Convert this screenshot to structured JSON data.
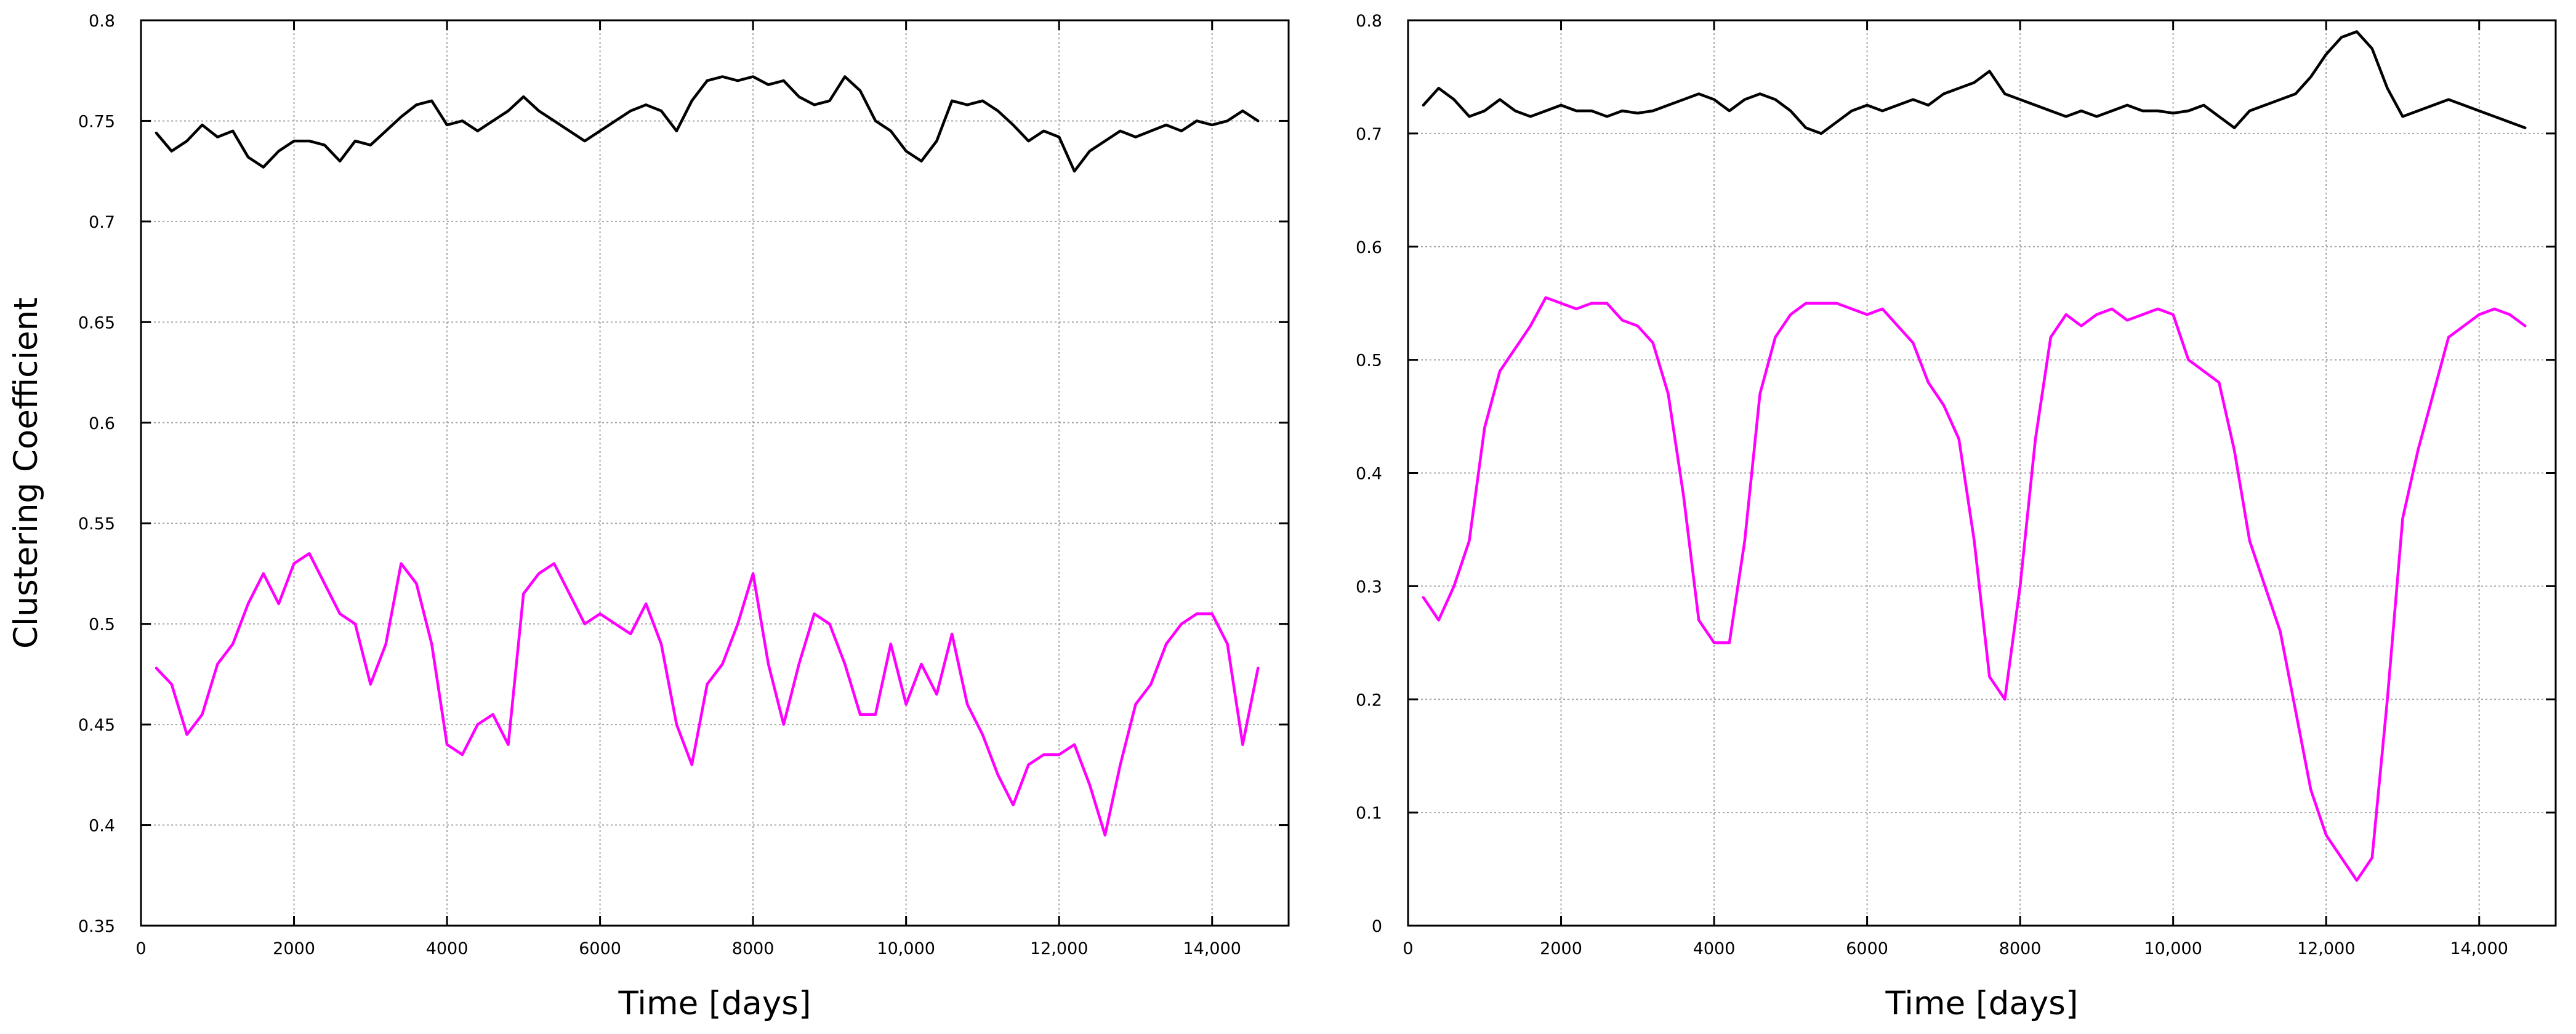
{
  "chart_data": [
    {
      "type": "line",
      "title": "",
      "xlabel": "Time [days]",
      "ylabel": "Clustering Coefficient",
      "xlim": [
        0,
        15000
      ],
      "ylim": [
        0.35,
        0.8
      ],
      "x_ticks": [
        0,
        2000,
        4000,
        6000,
        8000,
        10000,
        12000,
        14000
      ],
      "x_tick_labels": [
        "0",
        "2000",
        "4000",
        "6000",
        "8000",
        "10,000",
        "12,000",
        "14,000"
      ],
      "y_ticks": [
        0.35,
        0.4,
        0.45,
        0.5,
        0.55,
        0.6,
        0.65,
        0.7,
        0.75,
        0.8
      ],
      "y_tick_labels": [
        "0.35",
        "0.4",
        "0.45",
        "0.5",
        "0.55",
        "0.6",
        "0.65",
        "0.7",
        "0.75",
        "0.8"
      ],
      "grid": true,
      "legend": "none",
      "x": [
        200,
        400,
        600,
        800,
        1000,
        1200,
        1400,
        1600,
        1800,
        2000,
        2200,
        2400,
        2600,
        2800,
        3000,
        3200,
        3400,
        3600,
        3800,
        4000,
        4200,
        4400,
        4600,
        4800,
        5000,
        5200,
        5400,
        5600,
        5800,
        6000,
        6200,
        6400,
        6600,
        6800,
        7000,
        7200,
        7400,
        7600,
        7800,
        8000,
        8200,
        8400,
        8600,
        8800,
        9000,
        9200,
        9400,
        9600,
        9800,
        10000,
        10200,
        10400,
        10600,
        10800,
        11000,
        11200,
        11400,
        11600,
        11800,
        12000,
        12200,
        12400,
        12600,
        12800,
        13000,
        13200,
        13400,
        13600,
        13800,
        14000,
        14200,
        14400,
        14600
      ],
      "series": [
        {
          "color": "#000000",
          "values": [
            0.744,
            0.735,
            0.74,
            0.748,
            0.742,
            0.745,
            0.732,
            0.727,
            0.735,
            0.74,
            0.74,
            0.738,
            0.73,
            0.74,
            0.738,
            0.745,
            0.752,
            0.758,
            0.76,
            0.748,
            0.75,
            0.745,
            0.75,
            0.755,
            0.762,
            0.755,
            0.75,
            0.745,
            0.74,
            0.745,
            0.75,
            0.755,
            0.758,
            0.755,
            0.745,
            0.76,
            0.77,
            0.772,
            0.77,
            0.772,
            0.768,
            0.77,
            0.762,
            0.758,
            0.76,
            0.772,
            0.765,
            0.75,
            0.745,
            0.735,
            0.73,
            0.74,
            0.76,
            0.758,
            0.76,
            0.755,
            0.748,
            0.74,
            0.745,
            0.742,
            0.725,
            0.735,
            0.74,
            0.745,
            0.742,
            0.745,
            0.748,
            0.745,
            0.75,
            0.748,
            0.75,
            0.755,
            0.75
          ]
        },
        {
          "color": "#ff00ff",
          "values": [
            0.478,
            0.47,
            0.445,
            0.455,
            0.48,
            0.49,
            0.51,
            0.525,
            0.51,
            0.53,
            0.535,
            0.52,
            0.505,
            0.5,
            0.47,
            0.49,
            0.53,
            0.52,
            0.49,
            0.44,
            0.435,
            0.45,
            0.455,
            0.44,
            0.515,
            0.525,
            0.53,
            0.515,
            0.5,
            0.505,
            0.5,
            0.495,
            0.51,
            0.49,
            0.45,
            0.43,
            0.47,
            0.48,
            0.5,
            0.525,
            0.48,
            0.45,
            0.48,
            0.505,
            0.5,
            0.48,
            0.455,
            0.455,
            0.49,
            0.46,
            0.48,
            0.465,
            0.495,
            0.46,
            0.445,
            0.425,
            0.41,
            0.43,
            0.435,
            0.435,
            0.44,
            0.42,
            0.395,
            0.43,
            0.46,
            0.47,
            0.49,
            0.5,
            0.505,
            0.505,
            0.49,
            0.44,
            0.478
          ]
        }
      ]
    },
    {
      "type": "line",
      "title": "",
      "xlabel": "Time [days]",
      "ylabel": "",
      "xlim": [
        0,
        15000
      ],
      "ylim": [
        0,
        0.8
      ],
      "x_ticks": [
        0,
        2000,
        4000,
        6000,
        8000,
        10000,
        12000,
        14000
      ],
      "x_tick_labels": [
        "0",
        "2000",
        "4000",
        "6000",
        "8000",
        "10,000",
        "12,000",
        "14,000"
      ],
      "y_ticks": [
        0,
        0.1,
        0.2,
        0.3,
        0.4,
        0.5,
        0.6,
        0.7,
        0.8
      ],
      "y_tick_labels": [
        "0",
        "0.1",
        "0.2",
        "0.3",
        "0.4",
        "0.5",
        "0.6",
        "0.7",
        "0.8"
      ],
      "grid": true,
      "legend": "none",
      "x": [
        200,
        400,
        600,
        800,
        1000,
        1200,
        1400,
        1600,
        1800,
        2000,
        2200,
        2400,
        2600,
        2800,
        3000,
        3200,
        3400,
        3600,
        3800,
        4000,
        4200,
        4400,
        4600,
        4800,
        5000,
        5200,
        5400,
        5600,
        5800,
        6000,
        6200,
        6400,
        6600,
        6800,
        7000,
        7200,
        7400,
        7600,
        7800,
        8000,
        8200,
        8400,
        8600,
        8800,
        9000,
        9200,
        9400,
        9600,
        9800,
        10000,
        10200,
        10400,
        10600,
        10800,
        11000,
        11200,
        11400,
        11600,
        11800,
        12000,
        12200,
        12400,
        12600,
        12800,
        13000,
        13200,
        13400,
        13600,
        13800,
        14000,
        14200,
        14400,
        14600
      ],
      "series": [
        {
          "color": "#000000",
          "values": [
            0.725,
            0.74,
            0.73,
            0.715,
            0.72,
            0.73,
            0.72,
            0.715,
            0.72,
            0.725,
            0.72,
            0.72,
            0.715,
            0.72,
            0.718,
            0.72,
            0.725,
            0.73,
            0.735,
            0.73,
            0.72,
            0.73,
            0.735,
            0.73,
            0.72,
            0.705,
            0.7,
            0.71,
            0.72,
            0.725,
            0.72,
            0.725,
            0.73,
            0.725,
            0.735,
            0.74,
            0.745,
            0.755,
            0.735,
            0.73,
            0.725,
            0.72,
            0.715,
            0.72,
            0.715,
            0.72,
            0.725,
            0.72,
            0.72,
            0.718,
            0.72,
            0.725,
            0.715,
            0.705,
            0.72,
            0.725,
            0.73,
            0.735,
            0.75,
            0.77,
            0.785,
            0.79,
            0.775,
            0.74,
            0.715,
            0.72,
            0.725,
            0.73,
            0.725,
            0.72,
            0.715,
            0.71,
            0.705
          ]
        },
        {
          "color": "#ff00ff",
          "values": [
            0.29,
            0.27,
            0.3,
            0.34,
            0.44,
            0.49,
            0.51,
            0.53,
            0.555,
            0.55,
            0.545,
            0.55,
            0.55,
            0.535,
            0.53,
            0.515,
            0.47,
            0.38,
            0.27,
            0.25,
            0.25,
            0.34,
            0.47,
            0.52,
            0.54,
            0.55,
            0.55,
            0.55,
            0.545,
            0.54,
            0.545,
            0.53,
            0.515,
            0.48,
            0.46,
            0.43,
            0.34,
            0.22,
            0.2,
            0.3,
            0.43,
            0.52,
            0.54,
            0.53,
            0.54,
            0.545,
            0.535,
            0.54,
            0.545,
            0.54,
            0.5,
            0.49,
            0.48,
            0.42,
            0.34,
            0.3,
            0.26,
            0.19,
            0.12,
            0.08,
            0.06,
            0.04,
            0.06,
            0.2,
            0.36,
            0.42,
            0.47,
            0.52,
            0.53,
            0.54,
            0.545,
            0.54,
            0.53
          ]
        }
      ]
    }
  ]
}
